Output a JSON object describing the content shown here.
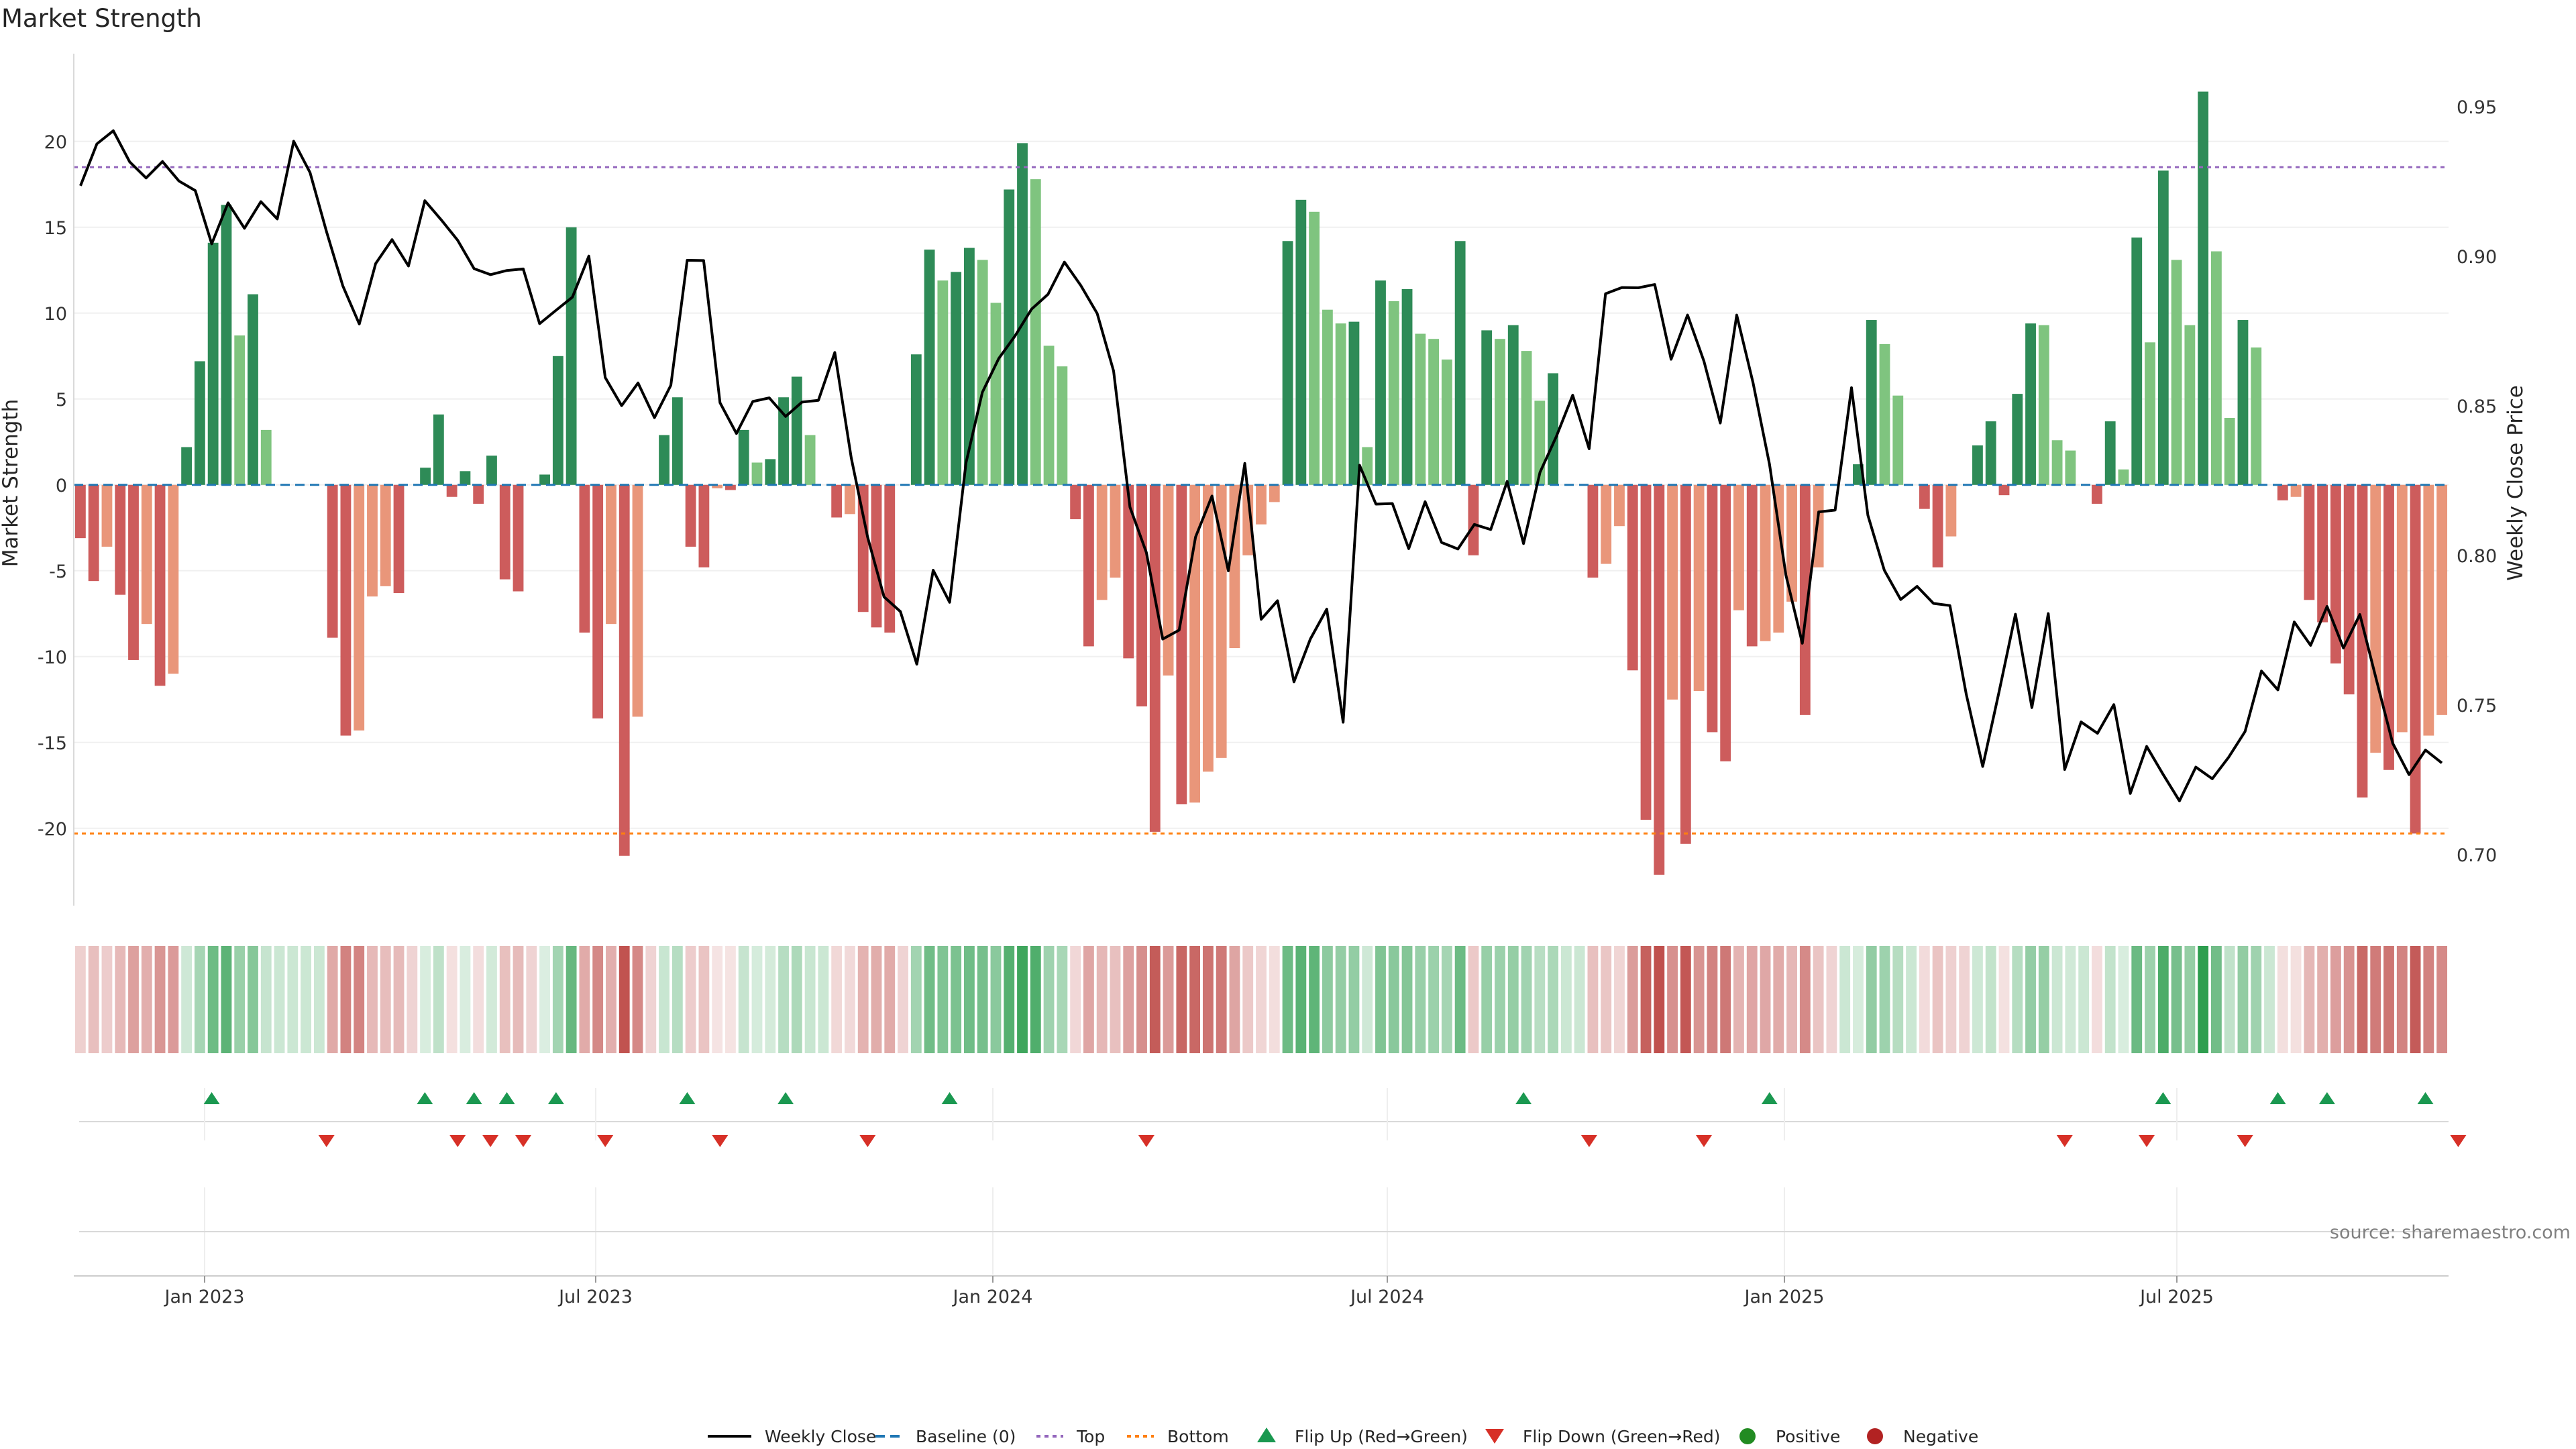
{
  "title": "Market Strength",
  "source": "source: sharemaestro.com",
  "chart_data": {
    "type": "bar",
    "ylabel": "Market Strength",
    "y2label": "Weekly Close Price",
    "ylim": [
      -24.5,
      25.5
    ],
    "y2lim": [
      0.683,
      0.97
    ],
    "yticks": [
      20,
      15,
      10,
      5,
      0,
      -5,
      -10,
      -15,
      -20
    ],
    "y2ticks": [
      "0.95",
      "0.90",
      "0.85",
      "0.80",
      "0.75",
      "0.70"
    ],
    "x_labels": [
      "Jan 2023",
      "Jul 2023",
      "Jan 2024",
      "Jul 2024",
      "Jan 2025",
      "Jul 2025"
    ],
    "top_line": 18.5,
    "bottom_line": -20.3,
    "baseline": 0,
    "strength": [
      -3.1,
      -5.6,
      -3.6,
      -6.4,
      -10.2,
      -8.1,
      -11.7,
      -11.0,
      2.2,
      7.2,
      14.1,
      16.3,
      8.7,
      11.1,
      3.2,
      0,
      0,
      0,
      0,
      -8.9,
      -14.6,
      -14.3,
      -6.5,
      -5.9,
      -6.3,
      0,
      1.0,
      4.1,
      -0.7,
      0.8,
      -1.1,
      1.7,
      -5.5,
      -6.2,
      0,
      0.6,
      7.5,
      15.0,
      -8.6,
      -13.6,
      -8.1,
      -21.6,
      -13.5,
      0,
      2.9,
      5.1,
      -3.6,
      -4.8,
      -0.2,
      -0.3,
      3.2,
      1.3,
      1.5,
      5.1,
      6.3,
      2.9,
      0,
      -1.9,
      -1.7,
      -7.4,
      -8.3,
      -8.6,
      0,
      7.6,
      13.7,
      11.9,
      12.4,
      13.8,
      13.1,
      10.6,
      17.2,
      19.9,
      17.8,
      8.1,
      6.9,
      -2.0,
      -9.4,
      -6.7,
      -5.4,
      -10.1,
      -12.9,
      -20.2,
      -11.1,
      -18.6,
      -18.5,
      -16.7,
      -15.9,
      -9.5,
      -4.1,
      -2.3,
      -1.0,
      14.2,
      16.6,
      15.9,
      10.2,
      9.4,
      9.5,
      2.2,
      11.9,
      10.7,
      11.4,
      8.8,
      8.5,
      7.3,
      14.2,
      -4.1,
      9.0,
      8.5,
      9.3,
      7.8,
      4.9,
      6.5,
      0,
      0,
      -5.4,
      -4.6,
      -2.4,
      -10.8,
      -19.5,
      -22.7,
      -12.5,
      -20.9,
      -12.0,
      -14.4,
      -16.1,
      -7.3,
      -9.4,
      -9.1,
      -8.6,
      -6.8,
      -13.4,
      -4.8,
      0,
      0,
      1.2,
      9.6,
      8.2,
      5.2,
      0,
      -1.4,
      -4.8,
      -3.0,
      0,
      2.3,
      3.7,
      -0.6,
      5.3,
      9.4,
      9.3,
      2.6,
      2.0,
      0,
      -1.1,
      3.7,
      0.9,
      14.4,
      8.3,
      18.3,
      13.1,
      9.3,
      22.9,
      13.6,
      3.9,
      9.6,
      8.0,
      0,
      -0.9,
      -0.7,
      -6.7,
      -8.0,
      -10.4,
      -12.2,
      -18.2,
      -15.6,
      -16.6,
      -14.4,
      -20.3,
      -14.6,
      -13.4
    ],
    "weekly_close": [
      0.9236,
      0.9376,
      0.942,
      0.9316,
      0.9262,
      0.9317,
      0.9252,
      0.922,
      0.9042,
      0.9179,
      0.9094,
      0.9183,
      0.9125,
      0.9385,
      0.928,
      0.9083,
      0.8901,
      0.8774,
      0.8976,
      0.9056,
      0.8968,
      0.9186,
      0.9122,
      0.9054,
      0.8959,
      0.8939,
      0.8953,
      0.8958,
      0.8775,
      0.882,
      0.8864,
      0.9001,
      0.8595,
      0.8501,
      0.8577,
      0.8461,
      0.8569,
      0.8987,
      0.8986,
      0.8511,
      0.8408,
      0.8515,
      0.8527,
      0.8465,
      0.8513,
      0.8519,
      0.8679,
      0.8327,
      0.8062,
      0.7862,
      0.7813,
      0.7637,
      0.7951,
      0.7844,
      0.831,
      0.8546,
      0.8659,
      0.8735,
      0.8824,
      0.8873,
      0.8981,
      0.8903,
      0.8809,
      0.8617,
      0.8162,
      0.801,
      0.7721,
      0.7751,
      0.8062,
      0.8199,
      0.7949,
      0.8308,
      0.7787,
      0.7849,
      0.7578,
      0.7721,
      0.7821,
      0.7443,
      0.8302,
      0.8172,
      0.8174,
      0.8023,
      0.818,
      0.8044,
      0.8022,
      0.8104,
      0.8087,
      0.8248,
      0.804,
      0.8278,
      0.8398,
      0.8536,
      0.8357,
      0.8875,
      0.8896,
      0.8895,
      0.8906,
      0.8656,
      0.8804,
      0.865,
      0.8443,
      0.8804,
      0.8577,
      0.8305,
      0.7935,
      0.7707,
      0.8146,
      0.8152,
      0.8561,
      0.8135,
      0.7951,
      0.7853,
      0.7897,
      0.784,
      0.7833,
      0.7536,
      0.7295,
      0.7545,
      0.7804,
      0.7492,
      0.7806,
      0.7285,
      0.7444,
      0.7406,
      0.7502,
      0.7205,
      0.7362,
      0.7269,
      0.718,
      0.7293,
      0.7254,
      0.7326,
      0.7412,
      0.7614,
      0.7551,
      0.7778,
      0.77,
      0.783,
      0.7691,
      0.7803,
      0.7587,
      0.7373,
      0.7268,
      0.735,
      0.7307
    ],
    "price_x_range": [
      0,
      190
    ],
    "flip_up_index": [
      8,
      21,
      24,
      26,
      29,
      37,
      43,
      53,
      88,
      103,
      127,
      134,
      137,
      143
    ],
    "flip_down_index": [
      15,
      23,
      25,
      27,
      32,
      39,
      48,
      65,
      92,
      99,
      121,
      126,
      132,
      145
    ],
    "legend": [
      "Weekly Close",
      "Baseline (0)",
      "Top",
      "Bottom",
      "Flip Up (Red→Green)",
      "Flip Down (Green→Red)",
      "Positive",
      "Negative"
    ],
    "colors": {
      "pos_strong": "#2e8b57",
      "pos_light": "#7fc47f",
      "neg_strong": "#cd5c5c",
      "neg_light": "#e9967a",
      "price": "#000000",
      "top": "#9467bd",
      "bottom": "#ff7f0e",
      "baseline": "#1f77b4",
      "flip_up": "#1a9850",
      "flip_down": "#d73027",
      "positive_dot": "#228b22",
      "negative_dot": "#b22222"
    }
  }
}
